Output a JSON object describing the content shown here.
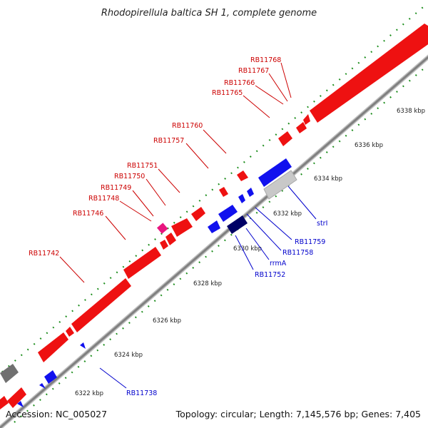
{
  "title": "Rhodopirellula baltica SH 1, complete genome",
  "footer": {
    "accession": "Accession: NC_005027",
    "summary": "Topology: circular; Length: 7,145,576 bp; Genes: 7,405"
  },
  "colors": {
    "forward_gene": "#ee1111",
    "reverse_gene": "#1111ee",
    "rna_gene": "#e8157f",
    "pseudo_gene": "#707070",
    "backbone": "#8c8c8c",
    "ruler_tick": "#1a8c1a",
    "forward_label": "#cc0000",
    "reverse_label": "#0000cc"
  },
  "ticks": [
    {
      "label": "6322 kbp"
    },
    {
      "label": "6324 kbp"
    },
    {
      "label": "6326 kbp"
    },
    {
      "label": "6328 kbp"
    },
    {
      "label": "6330 kbp"
    },
    {
      "label": "6332 kbp"
    },
    {
      "label": "6334 kbp"
    },
    {
      "label": "6336 kbp"
    },
    {
      "label": "6338 kbp"
    }
  ],
  "forward_labels": [
    "RB11768",
    "RB11767",
    "RB11766",
    "RB11765",
    "RB11760",
    "RB11757",
    "RB11751",
    "RB11750",
    "RB11749",
    "RB11748",
    "RB11746",
    "RB11742"
  ],
  "reverse_labels": [
    "strI",
    "RB11759",
    "RB11758",
    "rrmA",
    "RB11752",
    "RB11738"
  ]
}
